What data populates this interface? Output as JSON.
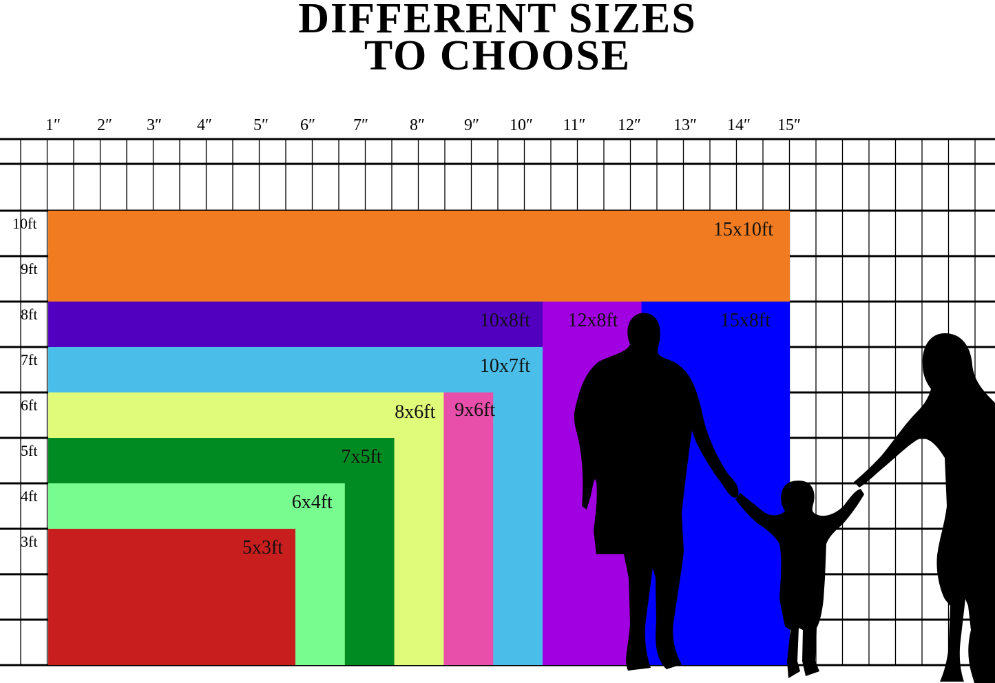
{
  "title": {
    "line1": "DIFFERENT SIZES",
    "line2": "TO CHOOSE"
  },
  "ruler_labels": [
    "1″",
    "2″",
    "3″",
    "4″",
    "5″",
    "6″",
    "7″",
    "8″",
    "9″",
    "10″",
    "11″",
    "12″",
    "13″",
    "14″",
    "15″"
  ],
  "height_labels": [
    "10ft",
    "9ft",
    "8ft",
    "7ft",
    "6ft",
    "5ft",
    "4ft",
    "3ft"
  ],
  "sizes": [
    {
      "label": "15x10ft",
      "width_ft": 15,
      "height_ft": 10,
      "color": "#F07B21"
    },
    {
      "label": "15x8ft",
      "width_ft": 15,
      "height_ft": 8,
      "color": "#0000FF"
    },
    {
      "label": "12x8ft",
      "width_ft": 12,
      "height_ft": 8,
      "color": "#A100E0"
    },
    {
      "label": "10x8ft",
      "width_ft": 10,
      "height_ft": 8,
      "color": "#5200C0"
    },
    {
      "label": "10x7ft",
      "width_ft": 10,
      "height_ft": 7,
      "color": "#4ABEE8"
    },
    {
      "label": "9x6ft",
      "width_ft": 9,
      "height_ft": 6,
      "color": "#E84FAA"
    },
    {
      "label": "8x6ft",
      "width_ft": 8,
      "height_ft": 6,
      "color": "#E0FA7A"
    },
    {
      "label": "7x5ft",
      "width_ft": 7,
      "height_ft": 5,
      "color": "#008A22"
    },
    {
      "label": "6x4ft",
      "width_ft": 6,
      "height_ft": 4,
      "color": "#78FC90"
    },
    {
      "label": "5x3ft",
      "width_ft": 5,
      "height_ft": 3,
      "color": "#C81E1E"
    }
  ],
  "silhouettes": [
    "man-silhouette",
    "child-silhouette",
    "woman-silhouette"
  ]
}
